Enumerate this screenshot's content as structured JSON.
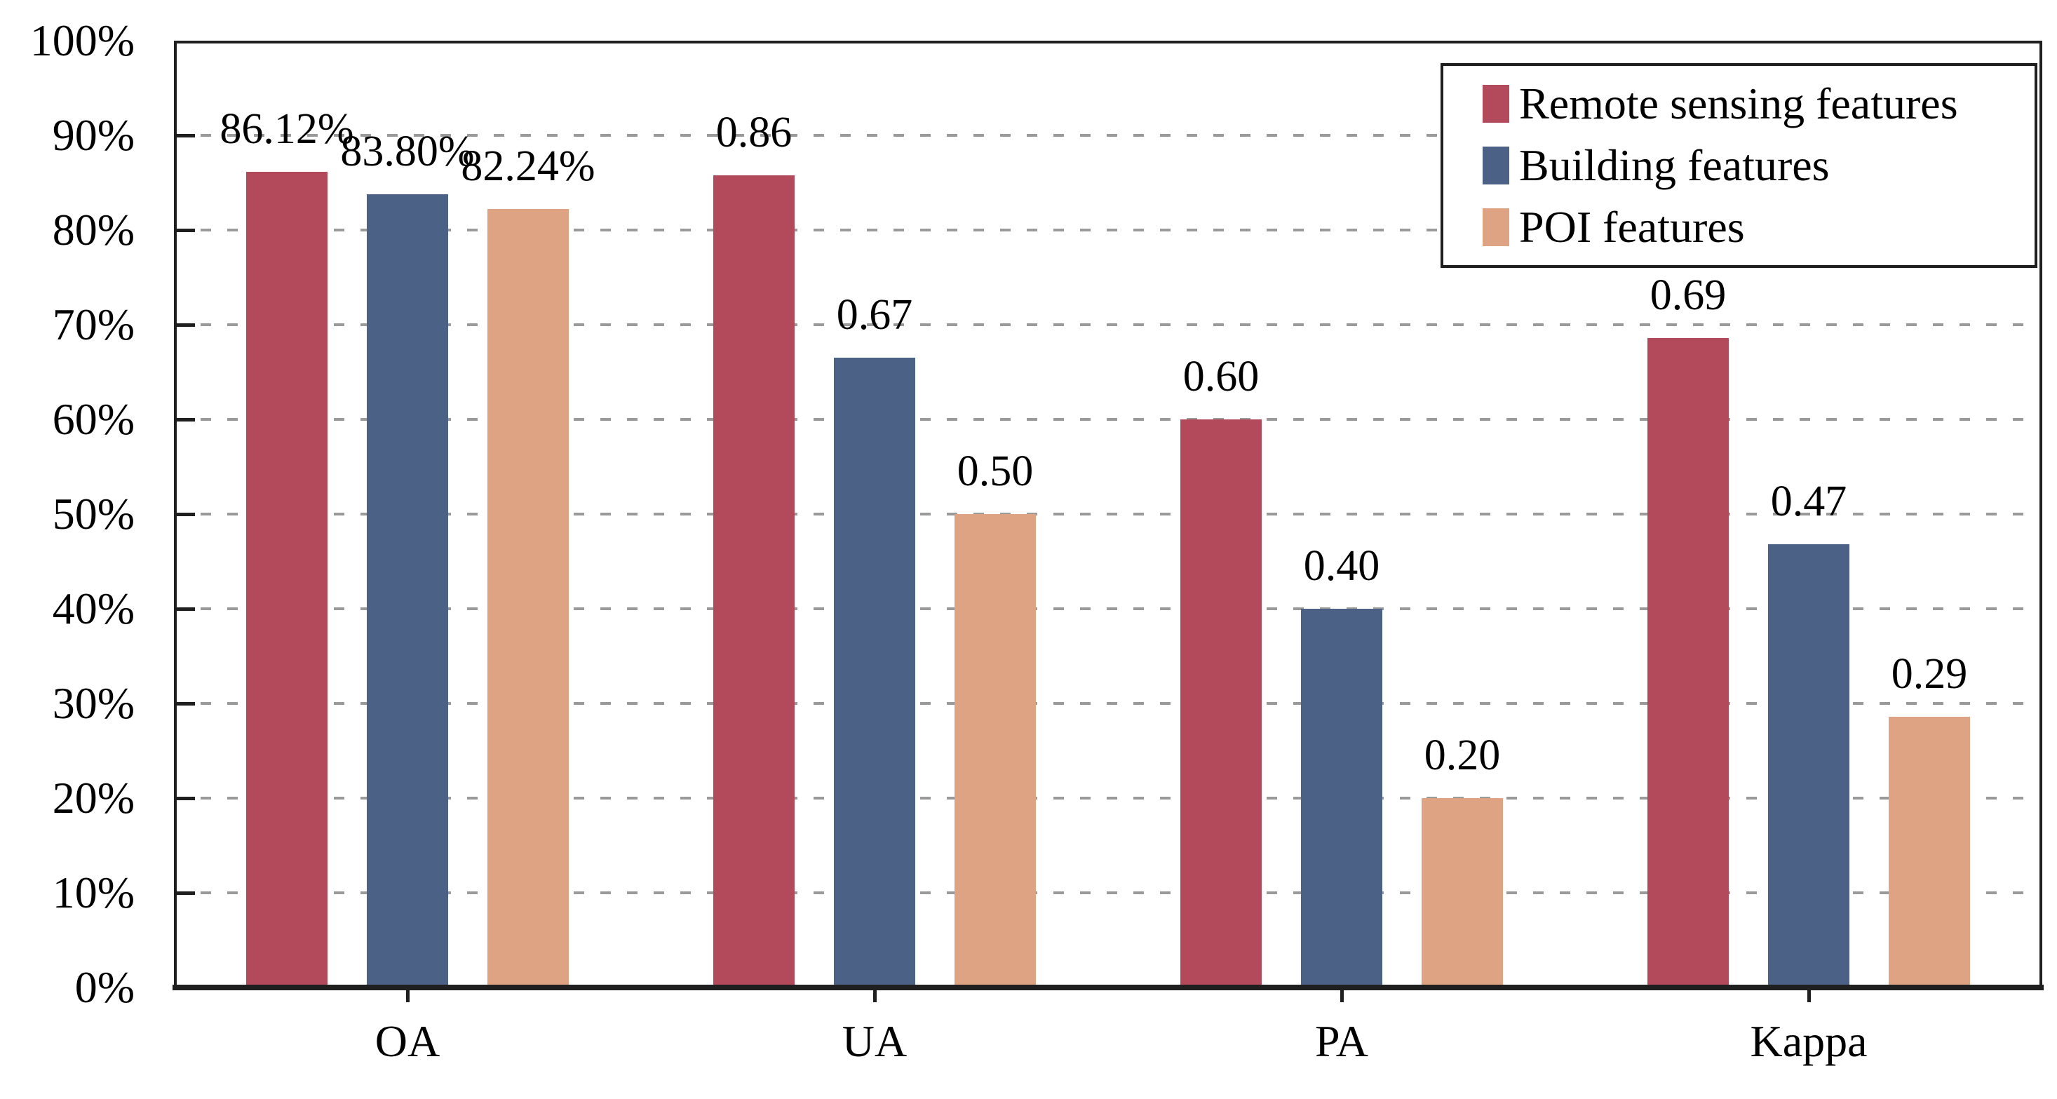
{
  "figure": {
    "background": "#ffffff",
    "text_color": "#000000",
    "axis_color": "#1f1f1f",
    "gridline_color": "#9a9a9a"
  },
  "chart_data": {
    "type": "bar",
    "title": "",
    "xlabel": "",
    "ylabel": "",
    "categories": [
      "OA",
      "UA",
      "PA",
      "Kappa"
    ],
    "series": [
      {
        "name": "Remote sensing features",
        "color": "#b24a5c",
        "values": [
          {
            "label": "86.12%",
            "pct": 86.12
          },
          {
            "label": "0.86",
            "pct": 85.8
          },
          {
            "label": "0.60",
            "pct": 60.0
          },
          {
            "label": "0.69",
            "pct": 68.6
          }
        ]
      },
      {
        "name": "Building features",
        "color": "#4c6186",
        "values": [
          {
            "label": "83.80%",
            "pct": 83.8
          },
          {
            "label": "0.67",
            "pct": 66.5
          },
          {
            "label": "0.40",
            "pct": 40.0
          },
          {
            "label": "0.47",
            "pct": 46.8
          }
        ]
      },
      {
        "name": "POI features",
        "color": "#dda382",
        "values": [
          {
            "label": "82.24%",
            "pct": 82.24
          },
          {
            "label": "0.50",
            "pct": 50.0
          },
          {
            "label": "0.20",
            "pct": 20.0
          },
          {
            "label": "0.29",
            "pct": 28.6
          }
        ]
      }
    ],
    "y_axis": {
      "min": 0,
      "max": 100,
      "step": 10,
      "tick_labels": [
        "0%",
        "10%",
        "20%",
        "30%",
        "40%",
        "50%",
        "60%",
        "70%",
        "80%",
        "90%",
        "100%"
      ]
    },
    "grid": {
      "horizontal": true,
      "style": "dashed"
    },
    "legend": {
      "position": "top-right",
      "entries": [
        "Remote sensing features",
        "Building features",
        "POI features"
      ]
    }
  }
}
